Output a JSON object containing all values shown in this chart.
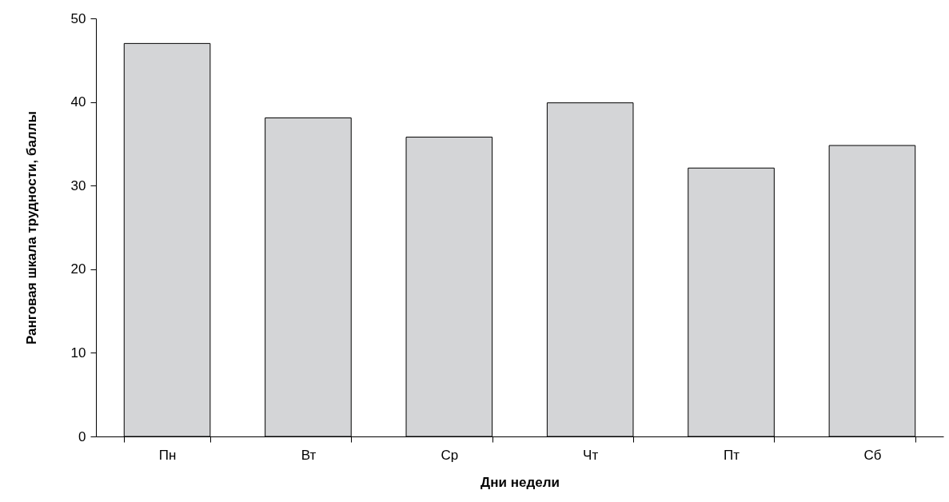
{
  "chart_data": {
    "type": "bar",
    "xlabel": "Дни недели",
    "ylabel": "Ранговая шкала трудности, баллы",
    "categories": [
      "Пн",
      "Вт",
      "Ср",
      "Чт",
      "Пт",
      "Сб"
    ],
    "values": [
      47,
      38.1,
      35.8,
      39.9,
      32.1,
      34.8
    ],
    "color": "#d4d5d7",
    "ylim": [
      0,
      50
    ],
    "yticks": [
      0,
      10,
      20,
      30,
      40,
      50
    ],
    "grid": false
  }
}
